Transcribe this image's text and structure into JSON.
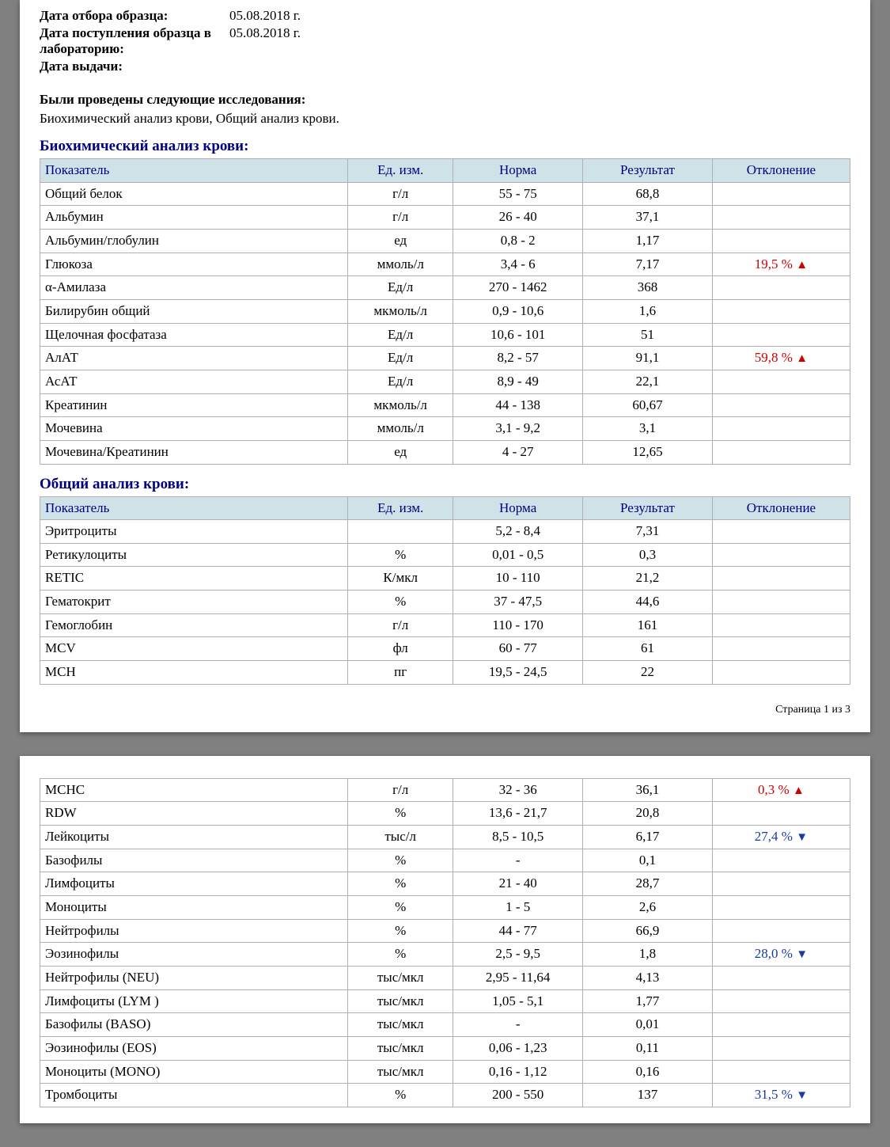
{
  "meta": {
    "sample_date_label": "Дата отбора образца:",
    "sample_date_value": "05.08.2018  г.",
    "received_label": "Дата поступления образца в лабораторию:",
    "received_value": "05.08.2018  г.",
    "issue_label": "Дата выдачи:",
    "issue_value": ""
  },
  "studies": {
    "title": "Были проведены следующие исследования:",
    "list": "Биохимический анализ крови, Общий анализ крови."
  },
  "columns": {
    "name": "Показатель",
    "unit": "Ед. изм.",
    "norm": "Норма",
    "result": "Результат",
    "deviation": "Отклонение"
  },
  "colors": {
    "header_bg": "#cfe2e8",
    "header_fg": "#000080",
    "border": "#b0b0b0",
    "dev_up": "#cc0000",
    "dev_down": "#1a3c9e"
  },
  "biochem": {
    "title": "Биохимический анализ крови:",
    "rows": [
      {
        "name": "Общий белок",
        "unit": "г/л",
        "norm": "55 - 75",
        "result": "68,8",
        "dev": "",
        "dir": ""
      },
      {
        "name": "Альбумин",
        "unit": "г/л",
        "norm": "26 - 40",
        "result": "37,1",
        "dev": "",
        "dir": ""
      },
      {
        "name": "Альбумин/глобулин",
        "unit": "ед",
        "norm": "0,8 - 2",
        "result": "1,17",
        "dev": "",
        "dir": ""
      },
      {
        "name": "Глюкоза",
        "unit": "ммоль/л",
        "norm": "3,4 - 6",
        "result": "7,17",
        "dev": "19,5 %",
        "dir": "up"
      },
      {
        "name": "α-Амилаза",
        "unit": "Ед/л",
        "norm": "270 - 1462",
        "result": "368",
        "dev": "",
        "dir": ""
      },
      {
        "name": "Билирубин общий",
        "unit": "мкмоль/л",
        "norm": "0,9 - 10,6",
        "result": "1,6",
        "dev": "",
        "dir": ""
      },
      {
        "name": "Щелочная фосфатаза",
        "unit": "Ед/л",
        "norm": "10,6 - 101",
        "result": "51",
        "dev": "",
        "dir": ""
      },
      {
        "name": "АлАТ",
        "unit": "Ед/л",
        "norm": "8,2 - 57",
        "result": "91,1",
        "dev": "59,8 %",
        "dir": "up"
      },
      {
        "name": "АсАТ",
        "unit": "Ед/л",
        "norm": "8,9 - 49",
        "result": "22,1",
        "dev": "",
        "dir": ""
      },
      {
        "name": "Креатинин",
        "unit": "мкмоль/л",
        "norm": "44 - 138",
        "result": "60,67",
        "dev": "",
        "dir": ""
      },
      {
        "name": "Мочевина",
        "unit": "ммоль/л",
        "norm": "3,1 - 9,2",
        "result": "3,1",
        "dev": "",
        "dir": ""
      },
      {
        "name": "Мочевина/Креатинин",
        "unit": "ед",
        "norm": "4 - 27",
        "result": "12,65",
        "dev": "",
        "dir": ""
      }
    ]
  },
  "cbc": {
    "title": "Общий анализ крови:",
    "rows_page1": [
      {
        "name": "Эритроциты",
        "unit": "",
        "norm": "5,2 - 8,4",
        "result": "7,31",
        "dev": "",
        "dir": ""
      },
      {
        "name": "Ретикулоциты",
        "unit": "%",
        "norm": "0,01 - 0,5",
        "result": "0,3",
        "dev": "",
        "dir": ""
      },
      {
        "name": "RETIC",
        "unit": "К/мкл",
        "norm": "10 - 110",
        "result": "21,2",
        "dev": "",
        "dir": ""
      },
      {
        "name": "Гематокрит",
        "unit": "%",
        "norm": "37 - 47,5",
        "result": "44,6",
        "dev": "",
        "dir": ""
      },
      {
        "name": "Гемоглобин",
        "unit": "г/л",
        "norm": "110 - 170",
        "result": "161",
        "dev": "",
        "dir": ""
      },
      {
        "name": "MCV",
        "unit": "фл",
        "norm": "60 - 77",
        "result": "61",
        "dev": "",
        "dir": ""
      },
      {
        "name": "MCH",
        "unit": "пг",
        "norm": "19,5 - 24,5",
        "result": "22",
        "dev": "",
        "dir": ""
      }
    ],
    "rows_page2": [
      {
        "name": "MCHC",
        "unit": "г/л",
        "norm": "32 - 36",
        "result": "36,1",
        "dev": "0,3 %",
        "dir": "up"
      },
      {
        "name": "RDW",
        "unit": "%",
        "norm": "13,6 - 21,7",
        "result": "20,8",
        "dev": "",
        "dir": ""
      },
      {
        "name": "Лейкоциты",
        "unit": "тыс/л",
        "norm": "8,5 - 10,5",
        "result": "6,17",
        "dev": "27,4 %",
        "dir": "down"
      },
      {
        "name": "Базофилы",
        "unit": "%",
        "norm": "-",
        "result": "0,1",
        "dev": "",
        "dir": ""
      },
      {
        "name": "Лимфоциты",
        "unit": "%",
        "norm": "21 - 40",
        "result": "28,7",
        "dev": "",
        "dir": ""
      },
      {
        "name": "Моноциты",
        "unit": "%",
        "norm": "1 - 5",
        "result": "2,6",
        "dev": "",
        "dir": ""
      },
      {
        "name": "Нейтрофилы",
        "unit": "%",
        "norm": "44 - 77",
        "result": "66,9",
        "dev": "",
        "dir": ""
      },
      {
        "name": "Эозинофилы",
        "unit": "%",
        "norm": "2,5 - 9,5",
        "result": "1,8",
        "dev": "28,0 %",
        "dir": "down"
      },
      {
        "name": "Нейтрофилы (NEU)",
        "unit": "тыс/мкл",
        "norm": "2,95 - 11,64",
        "result": "4,13",
        "dev": "",
        "dir": ""
      },
      {
        "name": "Лимфоциты (LYM )",
        "unit": "тыс/мкл",
        "norm": "1,05 - 5,1",
        "result": "1,77",
        "dev": "",
        "dir": ""
      },
      {
        "name": "Базофилы (BASO)",
        "unit": "тыс/мкл",
        "norm": "-",
        "result": "0,01",
        "dev": "",
        "dir": ""
      },
      {
        "name": "Эозинофилы (EOS)",
        "unit": "тыс/мкл",
        "norm": "0,06 - 1,23",
        "result": "0,11",
        "dev": "",
        "dir": ""
      },
      {
        "name": "Моноциты (MONO)",
        "unit": "тыс/мкл",
        "norm": "0,16 - 1,12",
        "result": "0,16",
        "dev": "",
        "dir": ""
      },
      {
        "name": "Тромбоциты",
        "unit": "%",
        "norm": "200 - 550",
        "result": "137",
        "dev": "31,5 %",
        "dir": "down"
      }
    ]
  },
  "footer": {
    "page1": "Страница 1 из 3"
  }
}
